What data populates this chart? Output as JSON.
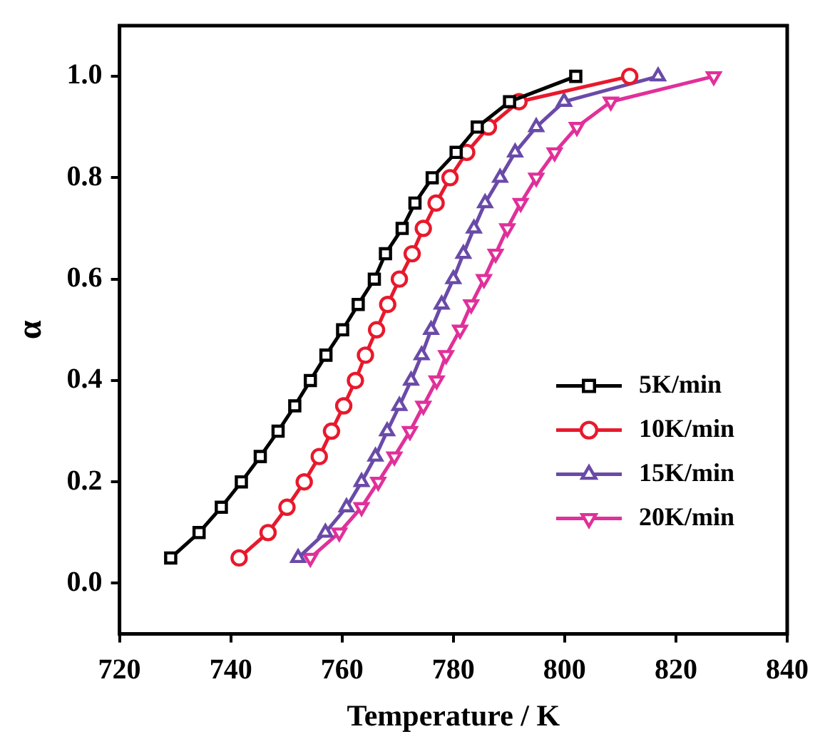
{
  "chart_data": {
    "type": "line",
    "xlabel": "Temperature / K",
    "ylabel": "α",
    "xlim": [
      720,
      840
    ],
    "xticks": [
      720,
      740,
      760,
      780,
      800,
      820,
      840
    ],
    "ylim": [
      -0.1,
      1.1
    ],
    "yticks": [
      {
        "value": 0,
        "label": "0.0"
      },
      {
        "value": 0.2,
        "label": "0.2"
      },
      {
        "value": 0.4,
        "label": "0.4"
      },
      {
        "value": 0.6,
        "label": "0.6"
      },
      {
        "value": 0.8,
        "label": "0.8"
      },
      {
        "value": 1,
        "label": "1.0"
      }
    ],
    "grid": false,
    "legend": "bottom right",
    "line_style": "solid",
    "series": [
      {
        "name": "5K/min",
        "color": "#000000",
        "marker": "square",
        "x": [
          729.2,
          734.3,
          738.3,
          741.9,
          745.3,
          748.5,
          751.5,
          754.3,
          757.1,
          760.1,
          762.9,
          765.8,
          767.8,
          770.8,
          773.1,
          776.2,
          780.5,
          784.3,
          790.1,
          802
        ],
        "values": [
          0.05,
          0.1,
          0.15,
          0.2,
          0.25,
          0.3,
          0.35,
          0.4,
          0.45,
          0.5,
          0.55,
          0.6,
          0.65,
          0.7,
          0.75,
          0.8,
          0.85,
          0.9,
          0.95,
          1.0
        ]
      },
      {
        "name": "10K/min",
        "color": "#e8192c",
        "marker": "circle",
        "x": [
          741.5,
          746.7,
          750.1,
          753.2,
          755.9,
          758.1,
          760.3,
          762.4,
          764.2,
          766.2,
          768.2,
          770.3,
          772.6,
          774.6,
          776.9,
          779.4,
          782.4,
          786.3,
          791.8,
          811.7
        ],
        "values": [
          0.05,
          0.1,
          0.15,
          0.2,
          0.25,
          0.3,
          0.35,
          0.4,
          0.45,
          0.5,
          0.55,
          0.6,
          0.65,
          0.7,
          0.75,
          0.8,
          0.85,
          0.9,
          0.95,
          1.0
        ]
      },
      {
        "name": "15K/min",
        "color": "#6a4aa8",
        "marker": "triangle",
        "x": [
          752.1,
          757,
          760.8,
          763.5,
          766,
          768.1,
          770.3,
          772.4,
          774.3,
          776,
          777.9,
          780,
          781.8,
          783.7,
          785.7,
          788.4,
          791.1,
          794.9,
          799.9,
          816.8
        ],
        "values": [
          0.05,
          0.1,
          0.15,
          0.2,
          0.25,
          0.3,
          0.35,
          0.4,
          0.45,
          0.5,
          0.55,
          0.6,
          0.65,
          0.7,
          0.75,
          0.8,
          0.85,
          0.9,
          0.95,
          1.0
        ]
      },
      {
        "name": "20K/min",
        "color": "#e0309a",
        "marker": "triangle-down",
        "x": [
          754.3,
          759.5,
          763.5,
          766.5,
          769.4,
          772.2,
          774.6,
          777,
          778.7,
          781.2,
          783.2,
          785.5,
          787.6,
          789.7,
          792.1,
          794.9,
          798.2,
          802.2,
          808.3,
          826.8
        ],
        "values": [
          0.05,
          0.1,
          0.15,
          0.2,
          0.25,
          0.3,
          0.35,
          0.4,
          0.45,
          0.5,
          0.55,
          0.6,
          0.65,
          0.7,
          0.75,
          0.8,
          0.85,
          0.9,
          0.95,
          1.0
        ]
      }
    ]
  }
}
